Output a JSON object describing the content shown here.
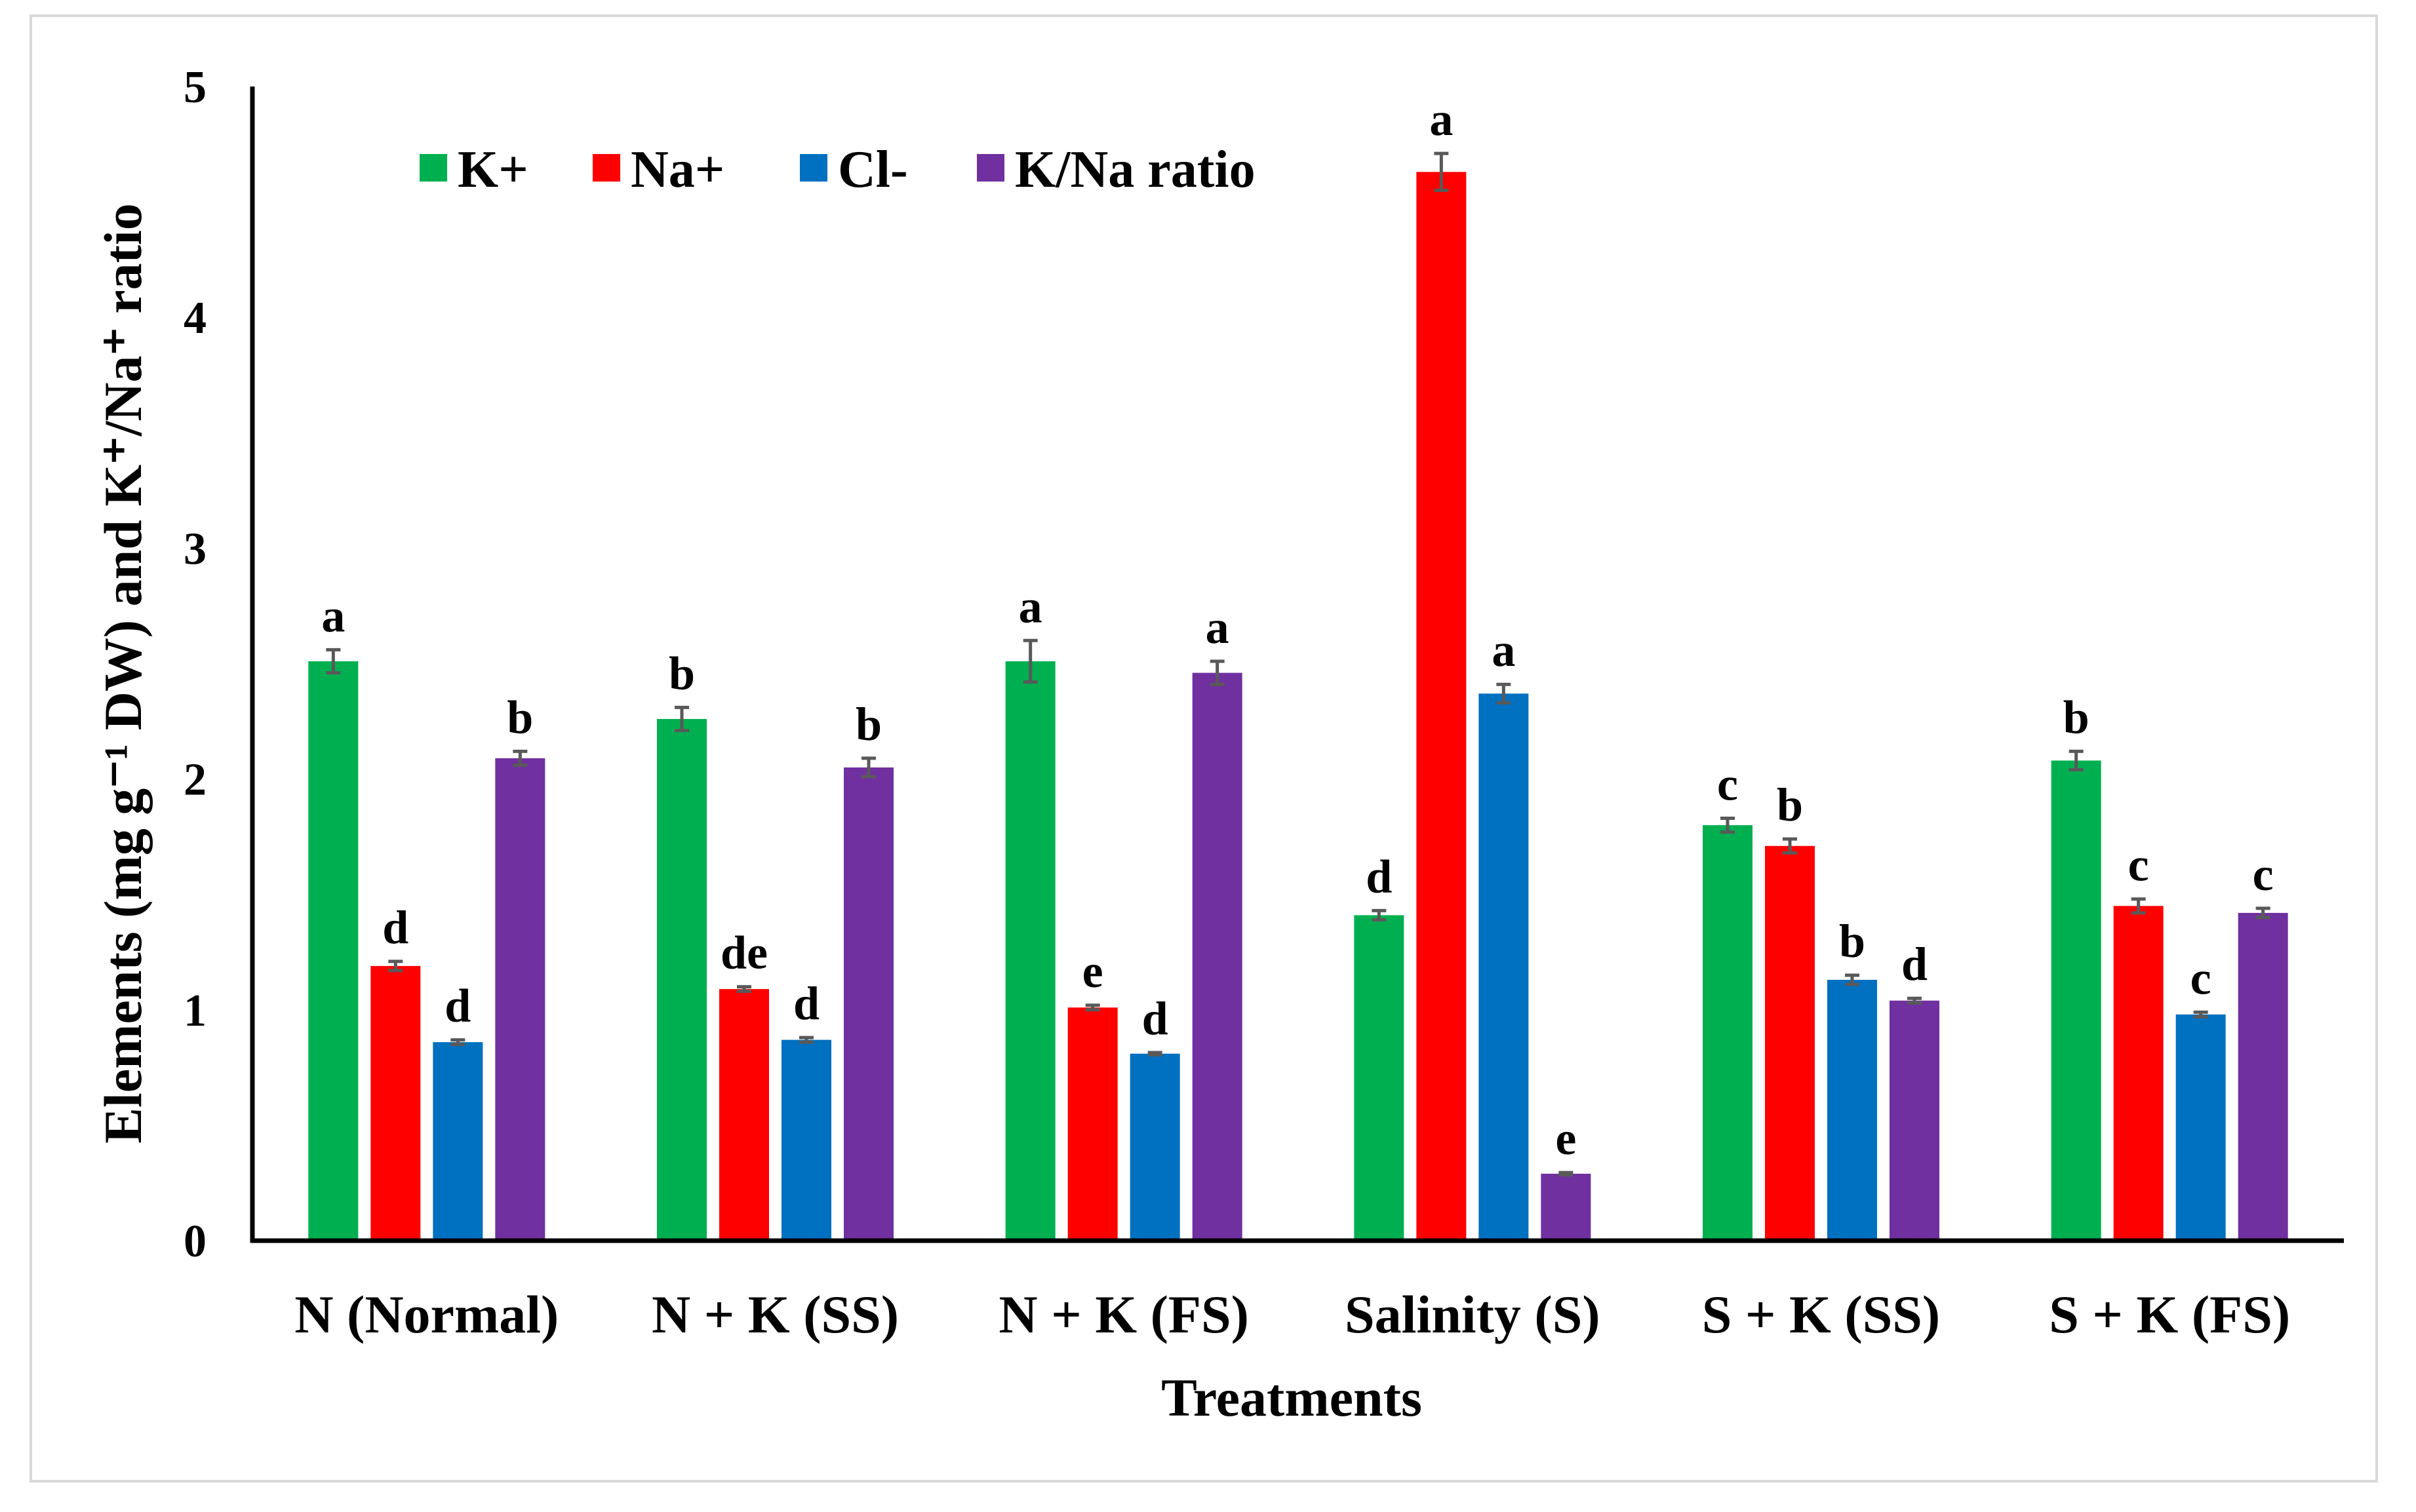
{
  "chart_data": {
    "type": "bar",
    "title": "",
    "xlabel": "Treatments",
    "ylabel": "Elements (mg g⁻¹ DW) and K⁺/Na⁺ ratio",
    "ylim": [
      0,
      5
    ],
    "yticks": [
      "0",
      "1",
      "2",
      "3",
      "4",
      "5"
    ],
    "grid": false,
    "legend_position": "top-left",
    "categories": [
      "N (Normal)",
      "N + K (SS)",
      "N + K (FS)",
      "Salinity (S)",
      "S + K (SS)",
      "S + K (FS)"
    ],
    "series": [
      {
        "name": "K+",
        "color": "#00b050",
        "values": [
          2.51,
          2.26,
          2.51,
          1.41,
          1.8,
          2.08
        ],
        "errors": [
          0.05,
          0.05,
          0.09,
          0.02,
          0.03,
          0.04
        ],
        "letters": [
          "a",
          "b",
          "a",
          "d",
          "c",
          "b"
        ]
      },
      {
        "name": "Na+",
        "color": "#ff0000",
        "values": [
          1.19,
          1.09,
          1.01,
          4.63,
          1.71,
          1.45
        ],
        "errors": [
          0.02,
          0.01,
          0.01,
          0.08,
          0.03,
          0.03
        ],
        "letters": [
          "d",
          "de",
          "e",
          "a",
          "b",
          "c"
        ]
      },
      {
        "name": "Cl-",
        "color": "#0070c0",
        "values": [
          0.86,
          0.87,
          0.81,
          2.37,
          1.13,
          0.98
        ],
        "errors": [
          0.01,
          0.01,
          0.005,
          0.04,
          0.02,
          0.01
        ],
        "letters": [
          "d",
          "d",
          "d",
          "a",
          "b",
          "c"
        ]
      },
      {
        "name": "K/Na ratio",
        "color": "#7030a0",
        "values": [
          2.09,
          2.05,
          2.46,
          0.29,
          1.04,
          1.42
        ],
        "errors": [
          0.03,
          0.04,
          0.05,
          0.005,
          0.01,
          0.02
        ],
        "letters": [
          "b",
          "b",
          "a",
          "e",
          "d",
          "c"
        ]
      }
    ]
  }
}
